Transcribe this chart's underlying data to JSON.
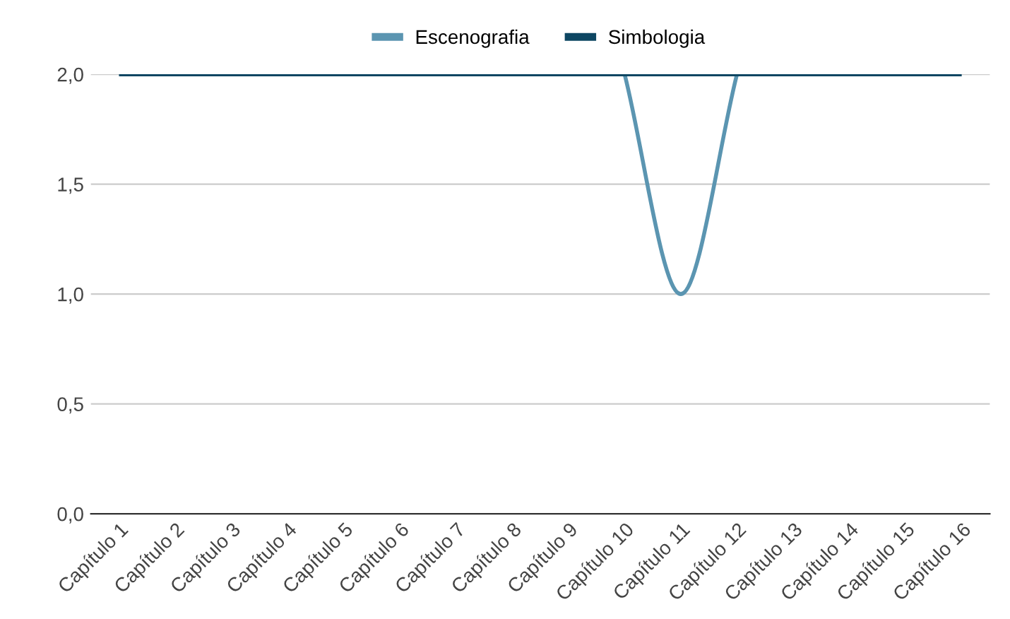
{
  "chart_data": {
    "type": "line",
    "categories": [
      "Capítulo 1",
      "Capítulo 2",
      "Capítulo 3",
      "Capítulo 4",
      "Capítulo 5",
      "Capítulo 6",
      "Capítulo 7",
      "Capítulo 8",
      "Capítulo 9",
      "Capítulo 10",
      "Capítulo 11",
      "Capítulo 12",
      "Capítulo 13",
      "Capítulo 14",
      "Capítulo 15",
      "Capítulo 16"
    ],
    "series": [
      {
        "name": "Escenografia",
        "color": "#5b95b1",
        "values": [
          null,
          null,
          null,
          null,
          null,
          null,
          null,
          null,
          null,
          2,
          1,
          2,
          null,
          null,
          null,
          null
        ]
      },
      {
        "name": "Simbologia",
        "color": "#0d4662",
        "values": [
          2,
          2,
          2,
          2,
          2,
          2,
          2,
          2,
          2,
          2,
          2,
          2,
          2,
          2,
          2,
          2
        ]
      }
    ],
    "ylim": [
      0,
      2
    ],
    "yticks": [
      {
        "value": 0,
        "label": "0,0"
      },
      {
        "value": 0.5,
        "label": "0,5"
      },
      {
        "value": 1,
        "label": "1,0"
      },
      {
        "value": 1.5,
        "label": "1,5"
      },
      {
        "value": 2,
        "label": "2,0"
      }
    ],
    "grid": "y",
    "legend": "top",
    "marker": "none",
    "line_style": "solid"
  }
}
